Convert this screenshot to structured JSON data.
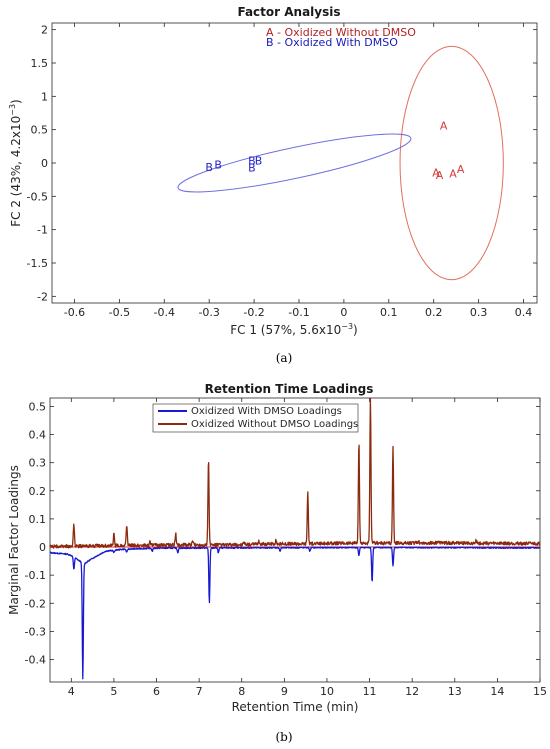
{
  "chart_data": [
    {
      "type": "scatter",
      "title": "Factor Analysis",
      "panel_label": "(a)",
      "xlabel": "FC 1 (57%, 5.6x10",
      "xlabel_exp": "−3",
      "xlabel_close": ")",
      "ylabel": "FC 2 (43%, 4.2x10",
      "ylabel_exp": "−3",
      "ylabel_close": ")",
      "xlim": [
        -0.65,
        0.43
      ],
      "ylim": [
        -2.1,
        2.1
      ],
      "xticks": [
        -0.6,
        -0.5,
        -0.4,
        -0.3,
        -0.2,
        -0.1,
        0,
        0.1,
        0.2,
        0.3,
        0.4
      ],
      "xtick_labels": [
        "-0.6",
        "-0.5",
        "-0.4",
        "-0.3",
        "-0.2",
        "-0.1",
        "0",
        "0.1",
        "0.2",
        "0.3",
        "0.4"
      ],
      "yticks": [
        -2,
        -1.5,
        -1,
        -0.5,
        0,
        0.5,
        1,
        1.5,
        2
      ],
      "ytick_labels": [
        "-2",
        "-1.5",
        "-1",
        "-0.5",
        "0",
        "0.5",
        "1",
        "1.5",
        "2"
      ],
      "legend": [
        {
          "text": "A - Oxidized Without DMSO",
          "color": "#b22222"
        },
        {
          "text": "B - Oxidized With DMSO",
          "color": "#1a1ab8"
        }
      ],
      "series": [
        {
          "marker": "A",
          "color": "#d63a3a",
          "points": [
            [
              0.222,
              0.56
            ],
            [
              0.205,
              -0.14
            ],
            [
              0.213,
              -0.18
            ],
            [
              0.243,
              -0.16
            ],
            [
              0.26,
              -0.09
            ]
          ]
        },
        {
          "marker": "B",
          "color": "#2424c8",
          "points": [
            [
              -0.3,
              -0.06
            ],
            [
              -0.28,
              -0.02
            ],
            [
              -0.205,
              0.04
            ],
            [
              -0.19,
              0.04
            ],
            [
              -0.205,
              -0.07
            ]
          ]
        }
      ],
      "ellipses": [
        {
          "color": "#e07060",
          "center": [
            0.24,
            0.0
          ],
          "semi_x": 0.115,
          "semi_y": 1.75,
          "angle_deg": 0
        },
        {
          "color": "#7070e0",
          "center": [
            -0.11,
            0.0
          ],
          "semi_x": 0.265,
          "semi_y": 0.23,
          "angle_deg": 12
        }
      ]
    },
    {
      "type": "line",
      "title": "Retention Time Loadings",
      "panel_label": "(b)",
      "xlabel": "Retention Time (min)",
      "ylabel": "Marginal Factor Loadings",
      "xlim": [
        3.5,
        15
      ],
      "ylim": [
        -0.48,
        0.53
      ],
      "xticks": [
        4,
        5,
        6,
        7,
        8,
        9,
        10,
        11,
        12,
        13,
        14,
        15
      ],
      "xtick_labels": [
        "4",
        "5",
        "6",
        "7",
        "8",
        "9",
        "10",
        "11",
        "12",
        "13",
        "14",
        "15"
      ],
      "yticks": [
        -0.4,
        -0.3,
        -0.2,
        -0.1,
        0,
        0.1,
        0.2,
        0.3,
        0.4,
        0.5
      ],
      "ytick_labels": [
        "-0.4",
        "-0.3",
        "-0.2",
        "-0.1",
        "0",
        "0.1",
        "0.2",
        "0.3",
        "0.4",
        "0.5"
      ],
      "legend": [
        {
          "text": "Oxidized With DMSO Loadings",
          "color": "#1818d0"
        },
        {
          "text": "Oxidized Without DMSO Loadings",
          "color": "#8b2a0e"
        }
      ],
      "series": [
        {
          "name": "Oxidized With DMSO Loadings",
          "color": "#1818d0",
          "baseline": [
            [
              3.5,
              -0.02
            ],
            [
              3.9,
              -0.025
            ],
            [
              4.0,
              -0.03
            ],
            [
              4.1,
              -0.04
            ],
            [
              4.3,
              -0.06
            ],
            [
              4.5,
              -0.04
            ],
            [
              4.8,
              -0.015
            ],
            [
              5.2,
              -0.008
            ],
            [
              6.0,
              -0.004
            ],
            [
              8.0,
              -0.003
            ],
            [
              10.0,
              -0.002
            ],
            [
              12.0,
              -0.002
            ],
            [
              15.0,
              -0.003
            ]
          ],
          "peaks": [
            [
              4.06,
              -0.08
            ],
            [
              4.27,
              -0.47
            ],
            [
              5.0,
              -0.02
            ],
            [
              5.3,
              -0.02
            ],
            [
              5.9,
              -0.015
            ],
            [
              6.5,
              -0.02
            ],
            [
              7.24,
              -0.2
            ],
            [
              7.45,
              -0.02
            ],
            [
              8.9,
              -0.015
            ],
            [
              9.6,
              -0.015
            ],
            [
              10.75,
              -0.03
            ],
            [
              11.06,
              -0.125
            ],
            [
              11.55,
              -0.065
            ]
          ]
        },
        {
          "name": "Oxidized Without DMSO Loadings",
          "color": "#8b2a0e",
          "baseline": [
            [
              3.5,
              0.0
            ],
            [
              4.5,
              0.002
            ],
            [
              5.5,
              0.004
            ],
            [
              6.5,
              0.006
            ],
            [
              7.5,
              0.006
            ],
            [
              8.0,
              0.006
            ],
            [
              8.5,
              0.009
            ],
            [
              9.5,
              0.01
            ],
            [
              10.5,
              0.012
            ],
            [
              11.5,
              0.012
            ],
            [
              12.5,
              0.013
            ],
            [
              13.5,
              0.012
            ],
            [
              15.0,
              0.01
            ]
          ],
          "peaks": [
            [
              4.06,
              0.08
            ],
            [
              5.0,
              0.045
            ],
            [
              5.3,
              0.08
            ],
            [
              5.85,
              0.02
            ],
            [
              6.45,
              0.045
            ],
            [
              6.85,
              0.02
            ],
            [
              7.22,
              0.31
            ],
            [
              8.05,
              0.015
            ],
            [
              8.4,
              0.02
            ],
            [
              8.8,
              0.02
            ],
            [
              9.55,
              0.195
            ],
            [
              10.75,
              0.37
            ],
            [
              11.02,
              0.53
            ],
            [
              11.55,
              0.355
            ],
            [
              12.15,
              0.02
            ],
            [
              12.6,
              0.018
            ],
            [
              13.5,
              0.02
            ]
          ]
        }
      ]
    }
  ]
}
